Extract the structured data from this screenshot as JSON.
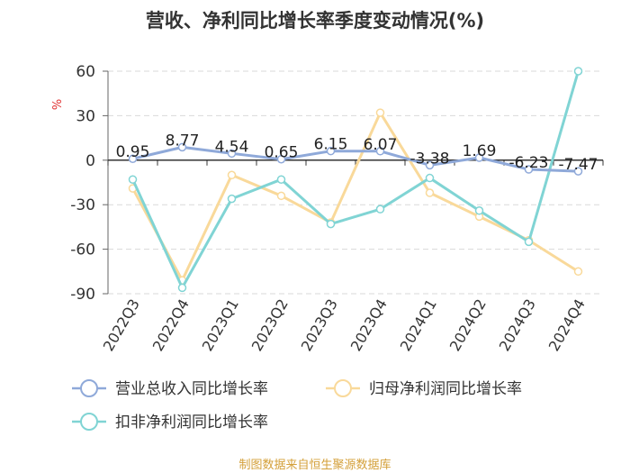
{
  "chart_data": {
    "type": "line",
    "title": "营收、净利同比增长率季度变动情况(%)",
    "ylabel": "%",
    "xlabel": "",
    "categories": [
      "2022Q3",
      "2022Q4",
      "2023Q1",
      "2023Q2",
      "2023Q3",
      "2023Q4",
      "2024Q1",
      "2024Q2",
      "2024Q3",
      "2024Q4"
    ],
    "ylim": [
      -90,
      60
    ],
    "yticks": [
      60,
      30,
      0,
      -30,
      -60,
      -90
    ],
    "grid": true,
    "legend_position": "bottom",
    "series": [
      {
        "name": "营业总收入同比增长率",
        "color": "#8fa9d9",
        "values": [
          0.95,
          8.77,
          4.54,
          0.65,
          6.15,
          6.07,
          -3.38,
          1.69,
          -6.23,
          -7.47
        ],
        "labels": [
          "0.95",
          "8.77",
          "4.54",
          "0.65",
          "6.15",
          "6.07",
          "-3.38",
          "1.69",
          "-6.23",
          "-7.47"
        ]
      },
      {
        "name": "归母净利润同比增长率",
        "color": "#f9d99a",
        "values": [
          -19,
          -81,
          -10,
          -24,
          -42,
          32,
          -22,
          -38,
          -54,
          -75
        ]
      },
      {
        "name": "扣非净利润同比增长率",
        "color": "#80d4d4",
        "values": [
          -13,
          -86,
          -26,
          -13,
          -43,
          -33,
          -12,
          -34,
          -55,
          60
        ]
      }
    ]
  },
  "footer": {
    "source": "制图数据来自恒生聚源数据库"
  }
}
